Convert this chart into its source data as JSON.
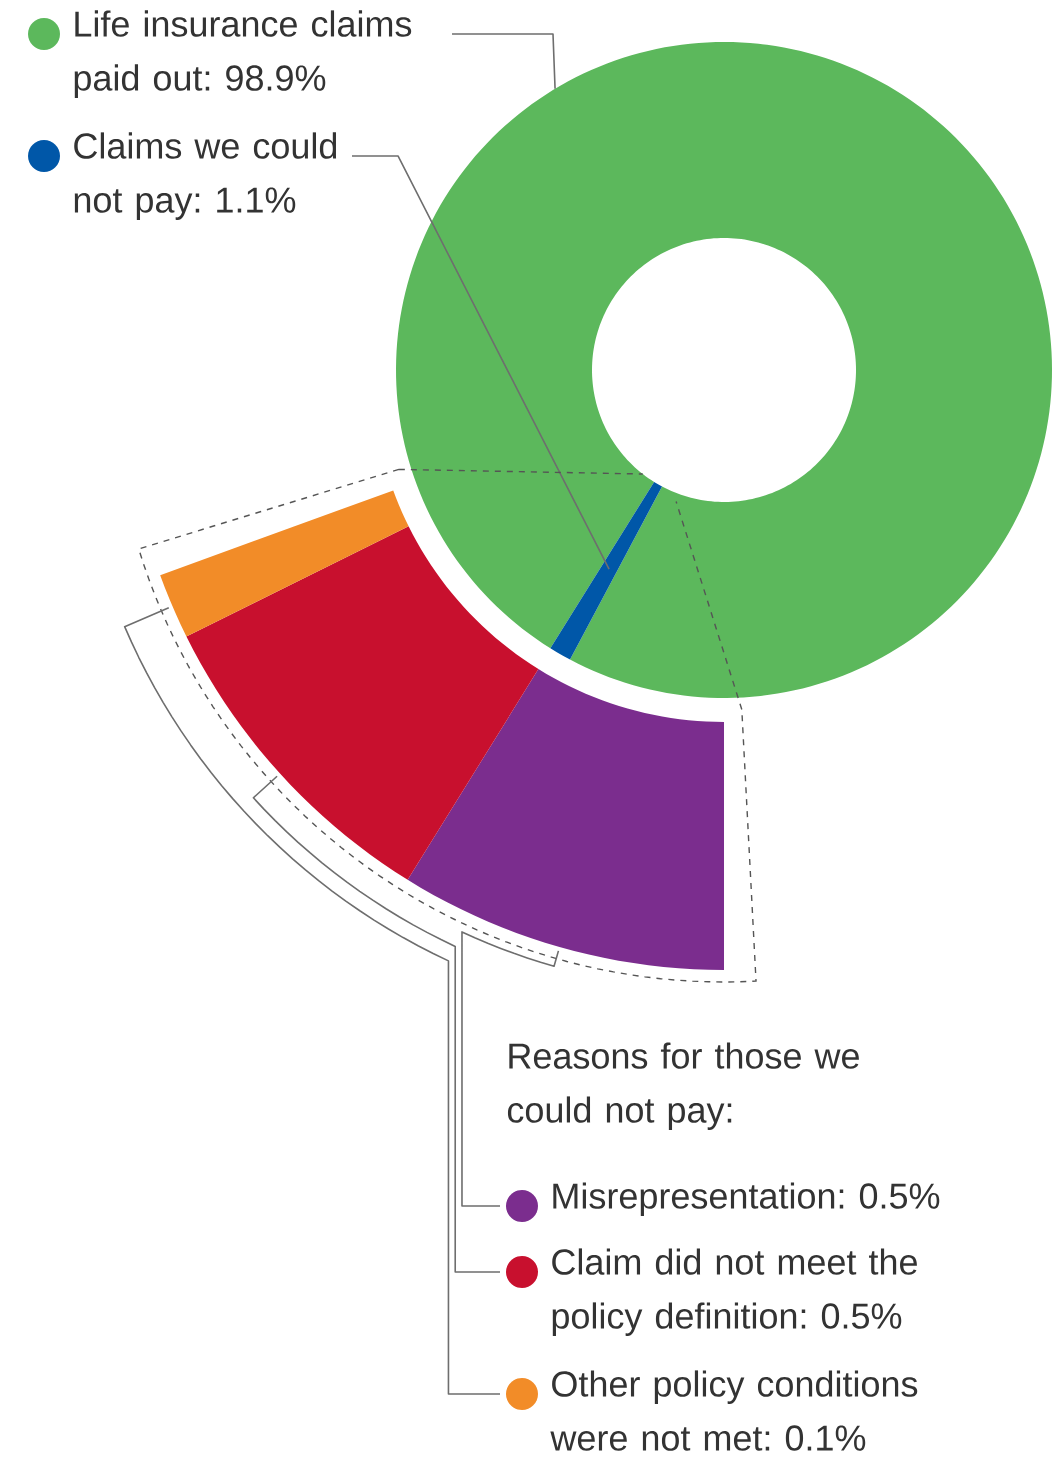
{
  "chart_data": [
    {
      "type": "donut",
      "legend": "top left",
      "categories": [
        "Life insurance claims paid out: 98.9%",
        "Claims we could not pay: 1.1%"
      ],
      "values": [
        98.9,
        1.1
      ],
      "colors": [
        "#5cb85c",
        "#0057a8"
      ]
    },
    {
      "type": "donut",
      "legend": "bottom right",
      "legend_title": "Reasons for those we could not pay:",
      "categories": [
        "Misrepresentation: 0.5%",
        "Claim did not meet the policy definition: 0.5%",
        "Other policy conditions were not met: 0.1%"
      ],
      "values": [
        0.5,
        0.5,
        0.1
      ],
      "colors": [
        "#7b2d8e",
        "#c8102e",
        "#f28c28"
      ]
    }
  ]
}
